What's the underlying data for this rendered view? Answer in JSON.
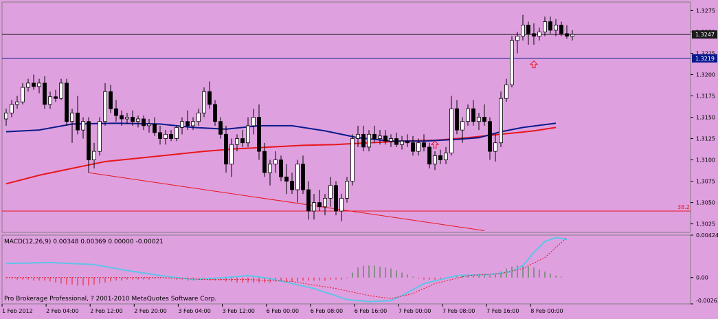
{
  "colors": {
    "background": "#dfa0df",
    "grid_border": "#808080",
    "bull_candle": "#ffffff",
    "bear_candle": "#000000",
    "ma_slow": "#e8161c",
    "ma_fast": "#0a1a8c",
    "hline_price": "#1a1a1a",
    "hline_level": "#0a1a8c",
    "fib_line": "#e8161c",
    "arrow": "#e8161c",
    "macd_line": "#5ec4e8",
    "macd_signal": "#e8161c",
    "macd_hist_pos": "#2e7d32",
    "macd_hist_neg": "#e8161c",
    "axis_label_bg": "#0a1a8c"
  },
  "price_axis": {
    "ticks": [
      "1.3275",
      "1.3250",
      "1.3225",
      "1.3200",
      "1.3175",
      "1.3150",
      "1.3125",
      "1.3100",
      "1.3075",
      "1.3050",
      "1.3025"
    ],
    "current_price_label": "1.3247",
    "level_label": "1.3219"
  },
  "fib_label": "38.2",
  "macd": {
    "header": "MACD(12,26,9) 0.00348 0.00369 0.00000 -0.00021",
    "ticks": [
      "0.00424",
      "0.00",
      "-0.00263"
    ]
  },
  "copyright": "Pro Brokerage Professional, ? 2001-2010 MetaQuotes Software Corp.",
  "time_axis": [
    "1 Feb 2012",
    "2 Feb 04:00",
    "2 Feb 12:00",
    "2 Feb 20:00",
    "3 Feb 04:00",
    "3 Feb 12:00",
    "6 Feb 00:00",
    "6 Feb 08:00",
    "6 Feb 16:00",
    "7 Feb 00:00",
    "7 Feb 08:00",
    "7 Feb 16:00",
    "8 Feb 00:00"
  ],
  "chart_data": {
    "type": "candlestick",
    "symbol_price_range": [
      1.3015,
      1.3285
    ],
    "horizontal_lines": [
      1.3247,
      1.3219,
      1.304
    ],
    "candles": [
      [
        1.3148,
        1.316,
        1.314,
        1.3155
      ],
      [
        1.3155,
        1.317,
        1.315,
        1.3165
      ],
      [
        1.3165,
        1.3175,
        1.316,
        1.3168
      ],
      [
        1.3168,
        1.319,
        1.3165,
        1.3185
      ],
      [
        1.3185,
        1.3195,
        1.318,
        1.319
      ],
      [
        1.319,
        1.32,
        1.3182,
        1.3186
      ],
      [
        1.3186,
        1.3195,
        1.3178,
        1.319
      ],
      [
        1.319,
        1.3198,
        1.316,
        1.3165
      ],
      [
        1.3165,
        1.318,
        1.316,
        1.3174
      ],
      [
        1.3174,
        1.3182,
        1.3168,
        1.3172
      ],
      [
        1.3172,
        1.3195,
        1.317,
        1.319
      ],
      [
        1.319,
        1.3195,
        1.314,
        1.3145
      ],
      [
        1.3145,
        1.316,
        1.312,
        1.3155
      ],
      [
        1.3155,
        1.3175,
        1.313,
        1.3135
      ],
      [
        1.3135,
        1.315,
        1.3125,
        1.3145
      ],
      [
        1.3145,
        1.315,
        1.3085,
        1.31
      ],
      [
        1.31,
        1.312,
        1.309,
        1.311
      ],
      [
        1.311,
        1.315,
        1.3105,
        1.3145
      ],
      [
        1.3145,
        1.319,
        1.314,
        1.318
      ],
      [
        1.318,
        1.3188,
        1.3155,
        1.316
      ],
      [
        1.316,
        1.317,
        1.3145,
        1.3152
      ],
      [
        1.3152,
        1.3158,
        1.314,
        1.3148
      ],
      [
        1.3148,
        1.3155,
        1.3142,
        1.315
      ],
      [
        1.315,
        1.3158,
        1.314,
        1.3145
      ],
      [
        1.3145,
        1.3152,
        1.3138,
        1.3148
      ],
      [
        1.3148,
        1.3152,
        1.3135,
        1.314
      ],
      [
        1.314,
        1.3148,
        1.3132,
        1.3142
      ],
      [
        1.3142,
        1.315,
        1.3128,
        1.3132
      ],
      [
        1.3132,
        1.314,
        1.3118,
        1.3125
      ],
      [
        1.3125,
        1.3135,
        1.3118,
        1.313
      ],
      [
        1.313,
        1.3135,
        1.3122,
        1.3125
      ],
      [
        1.3125,
        1.314,
        1.3122,
        1.3138
      ],
      [
        1.3138,
        1.315,
        1.313,
        1.3145
      ],
      [
        1.3145,
        1.3158,
        1.3135,
        1.314
      ],
      [
        1.314,
        1.315,
        1.3135,
        1.3145
      ],
      [
        1.3145,
        1.316,
        1.314,
        1.3155
      ],
      [
        1.3155,
        1.3185,
        1.315,
        1.318
      ],
      [
        1.318,
        1.3192,
        1.316,
        1.3165
      ],
      [
        1.3165,
        1.317,
        1.314,
        1.3145
      ],
      [
        1.3145,
        1.315,
        1.3125,
        1.313
      ],
      [
        1.313,
        1.314,
        1.3085,
        1.3095
      ],
      [
        1.3095,
        1.3125,
        1.308,
        1.3118
      ],
      [
        1.3118,
        1.313,
        1.311,
        1.3125
      ],
      [
        1.3125,
        1.3135,
        1.3115,
        1.312
      ],
      [
        1.312,
        1.315,
        1.3115,
        1.314
      ],
      [
        1.314,
        1.316,
        1.313,
        1.315
      ],
      [
        1.315,
        1.3165,
        1.31,
        1.311
      ],
      [
        1.311,
        1.312,
        1.308,
        1.3085
      ],
      [
        1.3085,
        1.31,
        1.307,
        1.3095
      ],
      [
        1.3095,
        1.311,
        1.3085,
        1.31
      ],
      [
        1.31,
        1.3105,
        1.3075,
        1.308
      ],
      [
        1.308,
        1.3095,
        1.306,
        1.3075
      ],
      [
        1.3075,
        1.3085,
        1.306,
        1.3065
      ],
      [
        1.3065,
        1.31,
        1.305,
        1.3095
      ],
      [
        1.3095,
        1.3105,
        1.306,
        1.3065
      ],
      [
        1.3065,
        1.3075,
        1.303,
        1.304
      ],
      [
        1.304,
        1.306,
        1.303,
        1.305
      ],
      [
        1.305,
        1.3065,
        1.304,
        1.3045
      ],
      [
        1.3045,
        1.306,
        1.3035,
        1.3055
      ],
      [
        1.3055,
        1.308,
        1.3045,
        1.307
      ],
      [
        1.307,
        1.3075,
        1.3035,
        1.304
      ],
      [
        1.304,
        1.306,
        1.3028,
        1.3055
      ],
      [
        1.3055,
        1.308,
        1.305,
        1.3075
      ],
      [
        1.3075,
        1.313,
        1.307,
        1.3125
      ],
      [
        1.3125,
        1.314,
        1.3115,
        1.313
      ],
      [
        1.313,
        1.314,
        1.311,
        1.3115
      ],
      [
        1.3115,
        1.3135,
        1.311,
        1.313
      ],
      [
        1.313,
        1.314,
        1.312,
        1.3125
      ],
      [
        1.3125,
        1.3135,
        1.3118,
        1.3128
      ],
      [
        1.3128,
        1.3135,
        1.3118,
        1.3122
      ],
      [
        1.3122,
        1.313,
        1.3115,
        1.3125
      ],
      [
        1.3125,
        1.3132,
        1.3115,
        1.3118
      ],
      [
        1.3118,
        1.3128,
        1.3112,
        1.3122
      ],
      [
        1.3122,
        1.313,
        1.3115,
        1.312
      ],
      [
        1.312,
        1.3128,
        1.3105,
        1.311
      ],
      [
        1.311,
        1.3125,
        1.3105,
        1.312
      ],
      [
        1.312,
        1.313,
        1.311,
        1.3115
      ],
      [
        1.3115,
        1.312,
        1.309,
        1.3095
      ],
      [
        1.3095,
        1.311,
        1.3088,
        1.3105
      ],
      [
        1.3105,
        1.3112,
        1.3095,
        1.31
      ],
      [
        1.31,
        1.3115,
        1.3095,
        1.3108
      ],
      [
        1.3108,
        1.3175,
        1.3105,
        1.316
      ],
      [
        1.316,
        1.317,
        1.313,
        1.3135
      ],
      [
        1.3135,
        1.315,
        1.312,
        1.3145
      ],
      [
        1.3145,
        1.3165,
        1.314,
        1.316
      ],
      [
        1.316,
        1.317,
        1.314,
        1.3145
      ],
      [
        1.3145,
        1.3155,
        1.3135,
        1.315
      ],
      [
        1.315,
        1.3165,
        1.314,
        1.3145
      ],
      [
        1.3145,
        1.315,
        1.31,
        1.311
      ],
      [
        1.311,
        1.313,
        1.3098,
        1.312
      ],
      [
        1.312,
        1.318,
        1.3115,
        1.3172
      ],
      [
        1.3172,
        1.3195,
        1.3168,
        1.3188
      ],
      [
        1.3188,
        1.3245,
        1.3185,
        1.324
      ],
      [
        1.324,
        1.325,
        1.3225,
        1.3245
      ],
      [
        1.3245,
        1.327,
        1.324,
        1.3258
      ],
      [
        1.3258,
        1.3262,
        1.3235,
        1.3248
      ],
      [
        1.3248,
        1.326,
        1.3235,
        1.3245
      ],
      [
        1.3245,
        1.3255,
        1.324,
        1.325
      ],
      [
        1.325,
        1.3268,
        1.3245,
        1.3262
      ],
      [
        1.3262,
        1.3268,
        1.3248,
        1.3252
      ],
      [
        1.3252,
        1.3265,
        1.3245,
        1.3258
      ],
      [
        1.3258,
        1.3262,
        1.3245,
        1.3248
      ],
      [
        1.3248,
        1.3258,
        1.3242,
        1.3245
      ],
      [
        1.3245,
        1.3252,
        1.324,
        1.3247
      ]
    ],
    "ma_fast": [
      [
        0,
        1.3133
      ],
      [
        6,
        1.3135
      ],
      [
        12,
        1.3142
      ],
      [
        20,
        1.3143
      ],
      [
        28,
        1.3142
      ],
      [
        34,
        1.3138
      ],
      [
        40,
        1.3136
      ],
      [
        46,
        1.314
      ],
      [
        52,
        1.314
      ],
      [
        58,
        1.3134
      ],
      [
        64,
        1.3126
      ],
      [
        70,
        1.3122
      ],
      [
        76,
        1.3122
      ],
      [
        82,
        1.3124
      ],
      [
        86,
        1.3126
      ],
      [
        90,
        1.3133
      ],
      [
        94,
        1.3138
      ],
      [
        100,
        1.3143
      ]
    ],
    "ma_slow": [
      [
        0,
        1.3072
      ],
      [
        6,
        1.3082
      ],
      [
        12,
        1.309
      ],
      [
        18,
        1.3098
      ],
      [
        24,
        1.3102
      ],
      [
        30,
        1.3106
      ],
      [
        36,
        1.311
      ],
      [
        42,
        1.3113
      ],
      [
        48,
        1.3115
      ],
      [
        54,
        1.3117
      ],
      [
        60,
        1.3118
      ],
      [
        66,
        1.312
      ],
      [
        72,
        1.3122
      ],
      [
        78,
        1.3123
      ],
      [
        84,
        1.3126
      ],
      [
        90,
        1.313
      ],
      [
        96,
        1.3134
      ],
      [
        100,
        1.3138
      ]
    ],
    "fib_line": [
      [
        15,
        1.3085
      ],
      [
        87,
        1.3017
      ]
    ],
    "arrows": [
      {
        "index": 78,
        "price": 1.3118
      },
      {
        "index": 96,
        "price": 1.3212
      }
    ],
    "macd_hist": [
      -0.0001,
      -0.0001,
      -0.0002,
      -0.0002,
      -0.0002,
      -0.0003,
      -0.0003,
      -0.0003,
      -0.0004,
      -0.0005,
      -0.0006,
      -0.0007,
      -0.0007,
      -0.0008,
      -0.0008,
      -0.0008,
      -0.0007,
      -0.0006,
      -0.0005,
      -0.0004,
      -0.0003,
      -0.0003,
      -0.0002,
      -0.0002,
      -0.0002,
      -0.0002,
      -0.0002,
      -0.0001,
      -0.0001,
      -0.0001,
      -0.0001,
      -0.0002,
      -0.0002,
      -0.0003,
      -0.0003,
      -0.0002,
      -0.0002,
      -0.0003,
      -0.0003,
      -0.0003,
      -0.0004,
      -0.0004,
      -0.0005,
      -0.0005,
      -0.0005,
      -0.0005,
      -0.0005,
      -0.0005,
      -0.0005,
      -0.0004,
      -0.0004,
      -0.0004,
      -0.0004,
      -0.0004,
      -0.0003,
      -0.0003,
      -0.0003,
      -0.0003,
      -0.0003,
      -0.0002,
      -0.0002,
      -0.0002,
      -0.0001,
      0.0005,
      0.001,
      0.0012,
      0.0012,
      0.0012,
      0.0011,
      0.001,
      0.0009,
      0.0007,
      0.0005,
      0.0003,
      0.0001,
      -0.0001,
      -0.0002,
      -0.0002,
      -0.0002,
      -0.0002,
      -0.0001,
      0.0001,
      0.0001,
      0.0002,
      0.0002,
      0.0002,
      0.0002,
      0.0002,
      0.0002,
      0.0003,
      0.0006,
      0.0009,
      0.0011,
      0.0012,
      0.0012,
      0.0011,
      0.001,
      0.0008,
      0.0006,
      0.0004,
      0.0002,
      0.0001
    ],
    "macd_line": [
      [
        0,
        0.0014
      ],
      [
        8,
        0.0015
      ],
      [
        16,
        0.0013
      ],
      [
        22,
        0.0007
      ],
      [
        28,
        0.0002
      ],
      [
        34,
        -0.0002
      ],
      [
        40,
        0.0
      ],
      [
        44,
        0.0002
      ],
      [
        48,
        -0.0001
      ],
      [
        56,
        -0.0011
      ],
      [
        62,
        -0.0022
      ],
      [
        66,
        -0.0024
      ],
      [
        70,
        -0.0023
      ],
      [
        72,
        -0.0018
      ],
      [
        76,
        -0.0006
      ],
      [
        82,
        0.0002
      ],
      [
        88,
        0.0003
      ],
      [
        92,
        0.0006
      ],
      [
        94,
        0.0012
      ],
      [
        96,
        0.0025
      ],
      [
        98,
        0.0036
      ],
      [
        100,
        0.004
      ],
      [
        102,
        0.0038
      ]
    ],
    "signal_line": [
      [
        0,
        0.0
      ],
      [
        10,
        0.0
      ],
      [
        20,
        0.0
      ],
      [
        28,
        0.0
      ],
      [
        36,
        -0.0002
      ],
      [
        44,
        -0.0002
      ],
      [
        52,
        -0.0004
      ],
      [
        60,
        -0.0011
      ],
      [
        66,
        -0.0018
      ],
      [
        70,
        -0.0021
      ],
      [
        74,
        -0.0016
      ],
      [
        78,
        -0.0006
      ],
      [
        84,
        0.0002
      ],
      [
        90,
        0.0004
      ],
      [
        94,
        0.0009
      ],
      [
        98,
        0.002
      ],
      [
        100,
        0.003
      ],
      [
        102,
        0.004
      ]
    ]
  }
}
